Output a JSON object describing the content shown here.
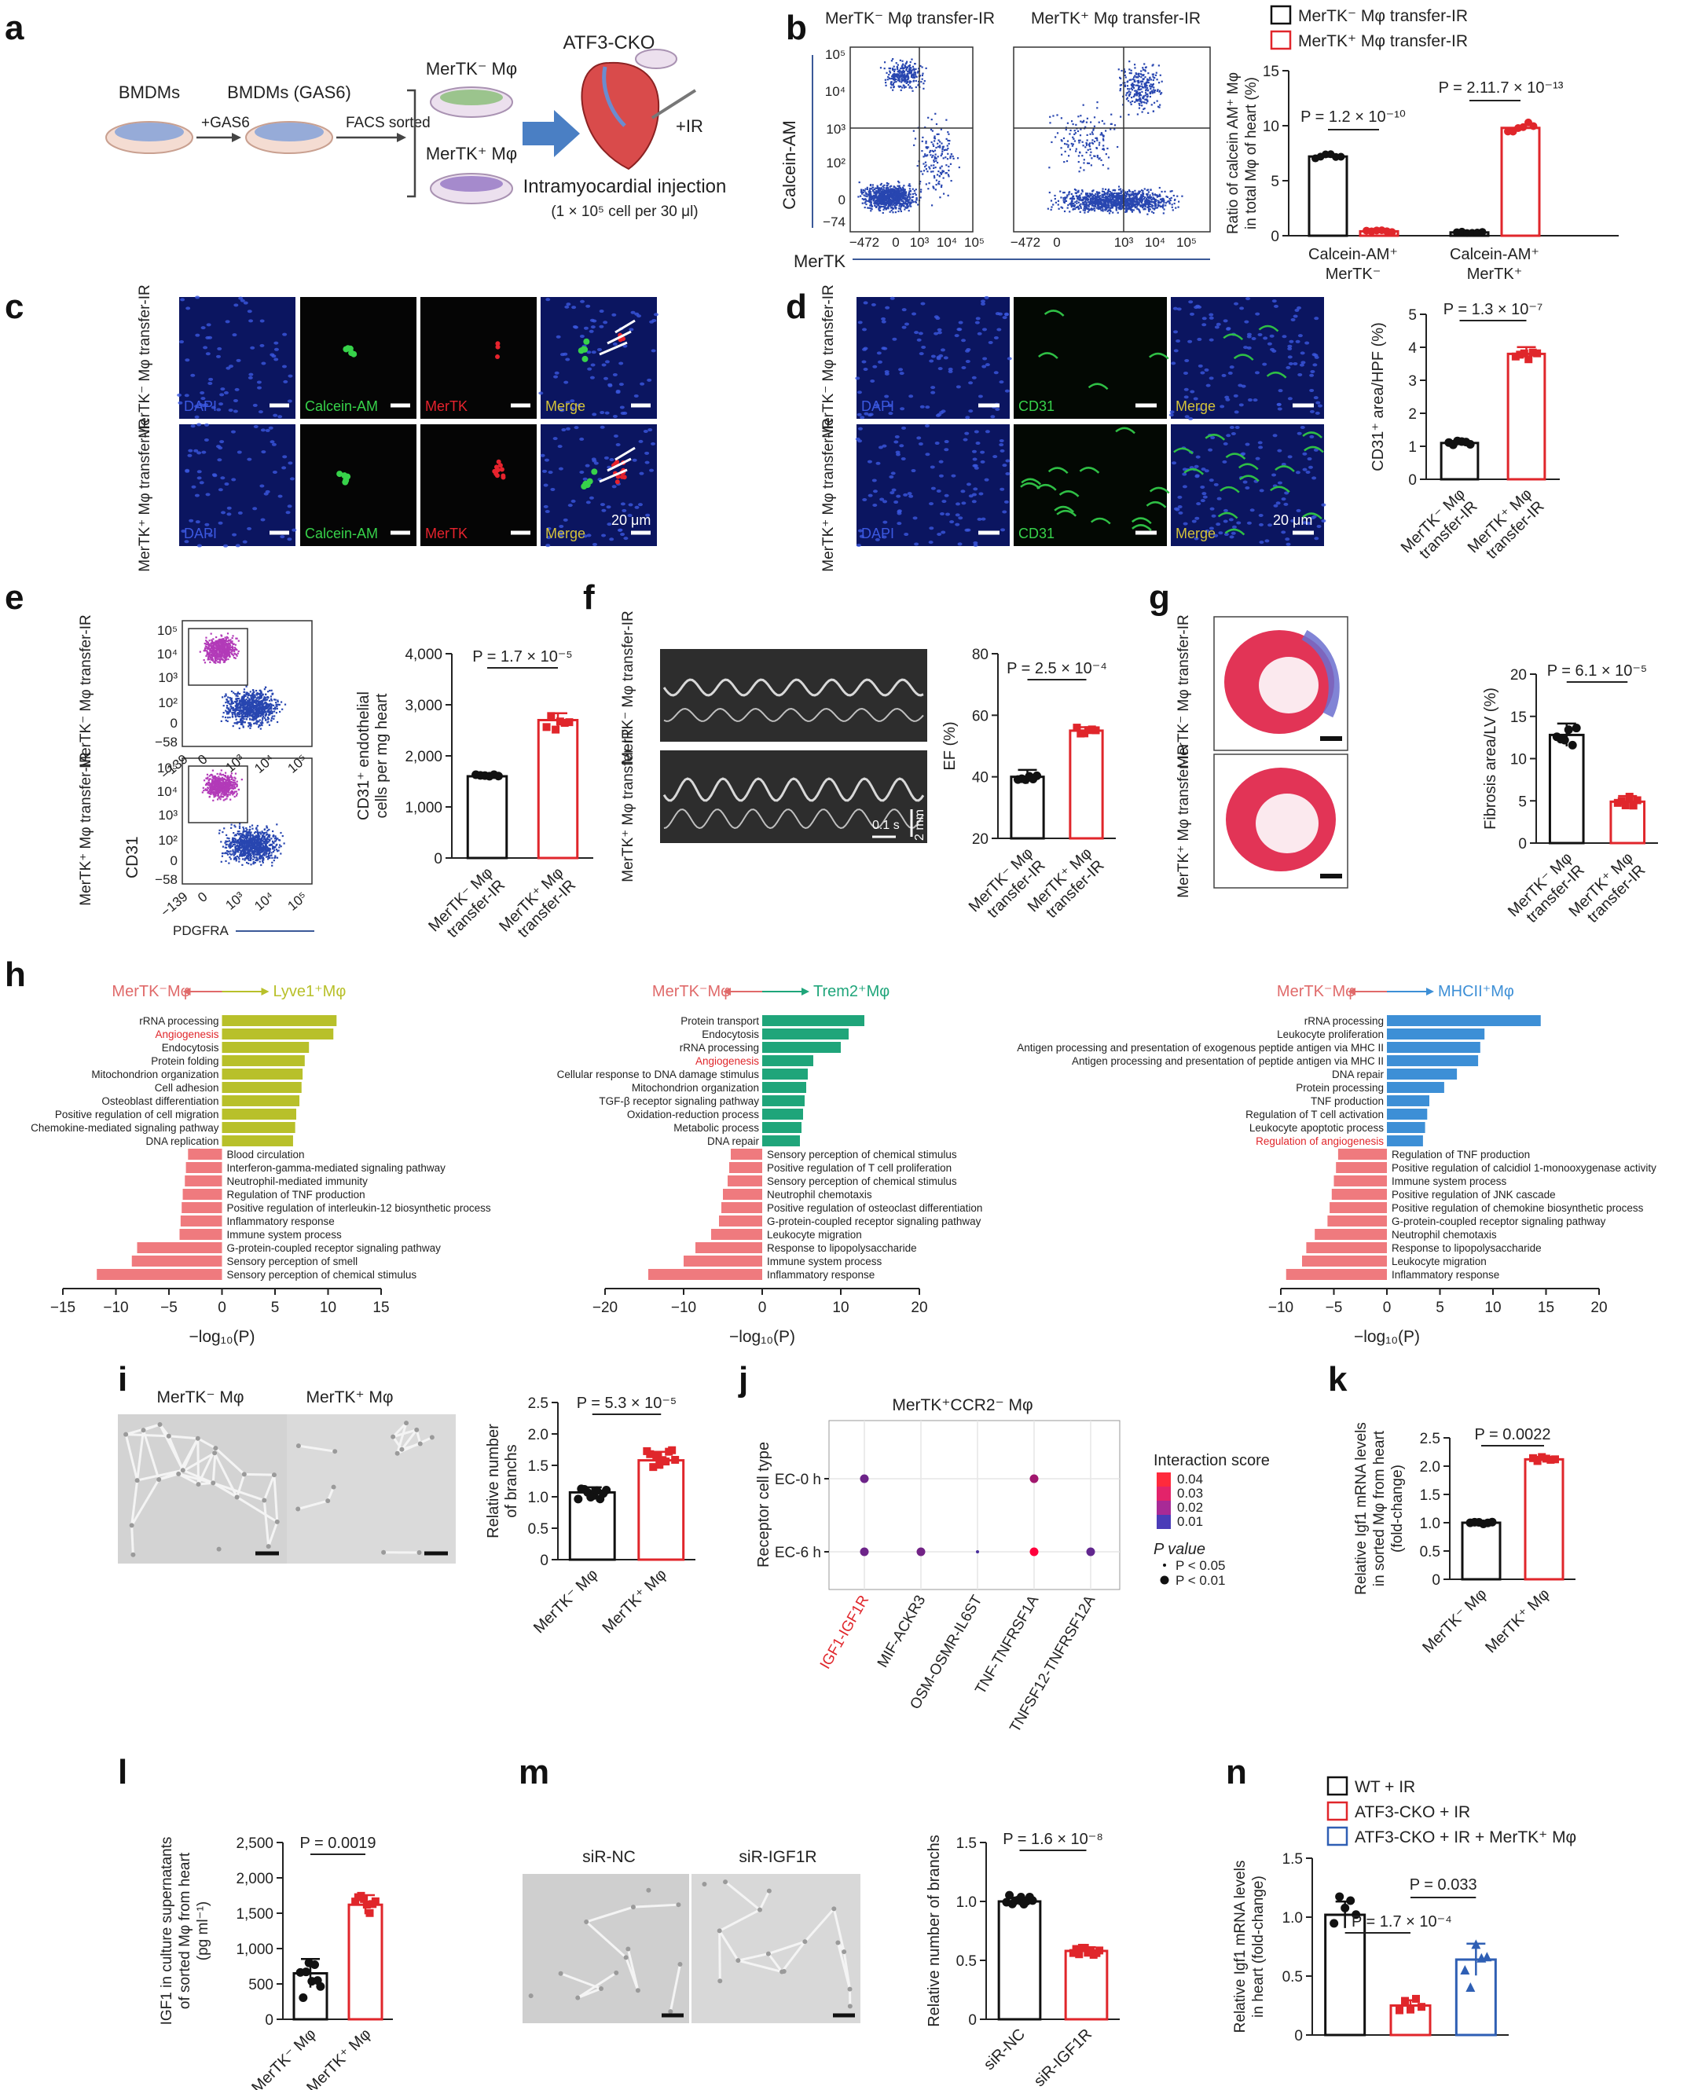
{
  "panel_labels": [
    "a",
    "b",
    "c",
    "d",
    "e",
    "f",
    "g",
    "h",
    "i",
    "j",
    "k",
    "l",
    "m",
    "n"
  ],
  "panel_a": {
    "bmdms": "BMDMs",
    "bmdms_gas6": "BMDMs (GAS6)",
    "gas6": "+GAS6",
    "facs": "FACS sorted",
    "merneg": "MerTK⁻ Mφ",
    "merpos": "MerTK⁺ Mφ",
    "cko": "ATF3-CKO",
    "ir": "+IR",
    "injection": "Intramyocardial injection",
    "dose": "(1 × 10⁵ cell per 30 μl)"
  },
  "panel_b": {
    "flow_titles": [
      "MerTK⁻ Mφ transfer-IR",
      "MerTK⁺ Mφ transfer-IR"
    ],
    "ylabel": "Calcein-AM",
    "xlabel": "MerTK",
    "yticks": [
      "10⁵",
      "10⁴",
      "10³",
      "10²",
      "0",
      "−74"
    ],
    "xticks": [
      "−472",
      "0",
      "10³",
      "10⁴",
      "10⁵"
    ],
    "legend": [
      "MerTK⁻ Mφ transfer-IR",
      "MerTK⁺ Mφ transfer-IR"
    ],
    "bar_ylabel": "Ratio of calcein AM⁺ Mφ in total Mφ of heart (%)",
    "p1": "P = 1.2 × 10⁻¹⁰",
    "p2": "P = 2.11.7 × 10⁻¹³",
    "group1": "Calcein-AM⁺ MerTK⁻ Mφ",
    "group2": "Calcein-AM⁺ MerTK⁺ Mφ"
  },
  "panel_c": {
    "row_labels": [
      "MerTK⁻ Mφ transfer-IR",
      "MerTK⁺ Mφ transfer-IR"
    ],
    "channels": [
      "DAPI",
      "Calcein-AM",
      "MerTK",
      "Merge"
    ],
    "scale": "20 μm"
  },
  "panel_d": {
    "row_labels": [
      "MerTK⁻ Mφ transfer-IR",
      "MerTK⁺ Mφ transfer-IR"
    ],
    "channels": [
      "DAPI",
      "CD31",
      "Merge"
    ],
    "scale": "20 μm",
    "ylabel": "CD31⁺ area/HPF (%)",
    "p": "P = 1.3 × 10⁻⁷",
    "groups": [
      "MerTK⁻ Mφ transfer-IR",
      "MerTK⁺ Mφ transfer-IR"
    ]
  },
  "panel_e": {
    "row_labels": [
      "MerTK⁻ Mφ transfer-IR",
      "MerTK⁺ Mφ transfer-IR"
    ],
    "ylabel": "CD31",
    "xlabel": "PDGFRA",
    "yticks": [
      "10⁵",
      "10⁴",
      "10³",
      "10²",
      "0",
      "−58"
    ],
    "xticks": [
      "−139",
      "0",
      "10³",
      "10⁴",
      "10⁵"
    ],
    "bar_ylabel": "CD31⁺ endothelial cells per mg heart",
    "p": "P = 1.7 × 10⁻⁵",
    "groups": [
      "MerTK⁻ Mφ transfer-IR",
      "MerTK⁺ Mφ transfer-IR"
    ]
  },
  "panel_f": {
    "row_labels": [
      "MerTK⁻ Mφ transfer-IR",
      "MerTK⁺ Mφ transfer-IR"
    ],
    "scale_t": "0.1 s",
    "scale_d": "2 mm",
    "ylabel": "EF (%)",
    "p": "P = 2.5 × 10⁻⁴",
    "groups": [
      "MerTK⁻ Mφ transfer-IR",
      "MerTK⁺ Mφ transfer-IR"
    ]
  },
  "panel_g": {
    "row_labels": [
      "MerTK⁻ Mφ transfer-IR",
      "MerTK⁺ Mφ transfer-IR"
    ],
    "ylabel": "Fibrosis area/LV (%)",
    "p": "P = 6.1 × 10⁻⁵",
    "groups": [
      "MerTK⁻ Mφ transfer-IR",
      "MerTK⁺ Mφ transfer-IR"
    ]
  },
  "panel_h": {
    "xlabel": "−log₁₀(P)",
    "neg_label": "MerTK⁻Mφ",
    "plots": [
      {
        "pos_label": "Lyve1⁺Mφ",
        "pos_color": "#b8c02a",
        "xmin": -15,
        "xmax": 15,
        "xticks": [
          -15,
          -10,
          -5,
          0,
          5,
          10,
          15
        ],
        "up": [
          [
            "rRNA processing",
            10.8
          ],
          [
            "Angiogenesis",
            10.5
          ],
          [
            "Endocytosis",
            8.2
          ],
          [
            "Protein folding",
            7.8
          ],
          [
            "Mitochondrion organization",
            7.6
          ],
          [
            "Cell adhesion",
            7.5
          ],
          [
            "Osteoblast differentiation",
            7.3
          ],
          [
            "Positive regulation of cell migration",
            7.0
          ],
          [
            "Chemokine-mediated signaling pathway",
            6.9
          ],
          [
            "DNA replication",
            6.7
          ]
        ],
        "down": [
          [
            "Blood circulation",
            -3.2
          ],
          [
            "Interferon-gamma-mediated signaling pathway",
            -3.4
          ],
          [
            "Neutrophil-mediated immunity",
            -3.5
          ],
          [
            "Regulation of TNF production",
            -3.7
          ],
          [
            "Positive regulation of interleukin-12 biosynthetic process",
            -3.8
          ],
          [
            "Inflammatory response",
            -3.9
          ],
          [
            "Immune system process",
            -4.0
          ],
          [
            "G-protein-coupled receptor signaling pathway",
            -8.0
          ],
          [
            "Sensory perception of smell",
            -8.5
          ],
          [
            "Sensory perception of chemical stimulus",
            -11.8
          ]
        ],
        "highlight": "Angiogenesis"
      },
      {
        "pos_label": "Trem2⁺Mφ",
        "pos_color": "#1fa57a",
        "xmin": -20,
        "xmax": 20,
        "xticks": [
          -20,
          -10,
          0,
          10,
          20
        ],
        "up": [
          [
            "Protein transport",
            13.0
          ],
          [
            "Endocytosis",
            11.0
          ],
          [
            "rRNA processing",
            10.0
          ],
          [
            "Angiogenesis",
            6.5
          ],
          [
            "Cellular response to DNA damage stimulus",
            5.8
          ],
          [
            "Mitochondrion organization",
            5.6
          ],
          [
            "TGF-β receptor signaling pathway",
            5.4
          ],
          [
            "Oxidation-reduction process",
            5.2
          ],
          [
            "Metabolic process",
            5.0
          ],
          [
            "DNA repair",
            4.8
          ]
        ],
        "down": [
          [
            "Sensory perception of chemical stimulus",
            -4.0
          ],
          [
            "Positive regulation of T cell proliferation",
            -4.2
          ],
          [
            "Sensory perception of chemical stimulus",
            -4.4
          ],
          [
            "Neutrophil chemotaxis",
            -5.0
          ],
          [
            "Positive regulation of osteoclast differentiation",
            -5.2
          ],
          [
            "G-protein-coupled receptor signaling pathway",
            -5.5
          ],
          [
            "Leukocyte migration",
            -6.5
          ],
          [
            "Response to lipopolysaccharide",
            -8.5
          ],
          [
            "Immune system process",
            -10.0
          ],
          [
            "Inflammatory response",
            -14.5
          ]
        ],
        "highlight": "Angiogenesis"
      },
      {
        "pos_label": "MHCII⁺Mφ",
        "pos_color": "#3d8fd6",
        "xmin": -10,
        "xmax": 20,
        "xticks": [
          -10,
          -5,
          0,
          5,
          10,
          15,
          20
        ],
        "up": [
          [
            "rRNA processing",
            14.5
          ],
          [
            "Leukocyte proliferation",
            9.2
          ],
          [
            "Antigen processing and presentation of exogenous peptide antigen via MHC II",
            8.8
          ],
          [
            "Antigen processing and presentation of peptide antigen via MHC II",
            8.6
          ],
          [
            "DNA repair",
            6.6
          ],
          [
            "Protein processing",
            5.4
          ],
          [
            "TNF production",
            4.0
          ],
          [
            "Regulation of T cell activation",
            3.8
          ],
          [
            "Leukocyte apoptotic process",
            3.6
          ],
          [
            "Regulation of angiogenesis",
            3.4
          ]
        ],
        "down": [
          [
            "Regulation of TNF production",
            -4.6
          ],
          [
            "Positive regulation of calcidiol 1-monooxygenase activity",
            -4.8
          ],
          [
            "Immune system process",
            -5.0
          ],
          [
            "Positive regulation of JNK cascade",
            -5.2
          ],
          [
            "Positive regulation of chemokine biosynthetic process",
            -5.4
          ],
          [
            "G-protein-coupled receptor signaling pathway",
            -5.6
          ],
          [
            "Neutrophil chemotaxis",
            -6.8
          ],
          [
            "Response to lipopolysaccharide",
            -7.6
          ],
          [
            "Leukocyte migration",
            -8.0
          ],
          [
            "Inflammatory response",
            -9.5
          ]
        ],
        "highlight": "Regulation of angiogenesis"
      }
    ]
  },
  "panel_i": {
    "images": [
      "MerTK⁻ Mφ",
      "MerTK⁺ Mφ"
    ],
    "ylabel": "Relative number of branchs",
    "p": "P = 5.3 × 10⁻⁵",
    "groups": [
      "MerTK⁻ Mφ",
      "MerTK⁺ Mφ"
    ]
  },
  "panel_j": {
    "title": "MerTK⁺CCR2⁻ Mφ",
    "ylabel": "Receptor cell type",
    "rows": [
      "EC-0 h",
      "EC-6 h"
    ],
    "cols": [
      "IGF1-IGF1R",
      "MIF-ACKR3",
      "OSM-OSMR-IL6ST",
      "TNF-TNFRSF1A",
      "TNFSF12-TNFRSF12A"
    ],
    "legend_title": "Interaction score",
    "legend_ticks": [
      "0.04",
      "0.03",
      "0.02",
      "0.01"
    ],
    "pvalue_title": "P value",
    "pvalue_items": [
      "P < 0.05",
      "P < 0.01"
    ]
  },
  "panel_k": {
    "ylabel": "Relative Igf1 mRNA levels in sorted Mφ from heart (fold-change)",
    "p": "P = 0.0022",
    "groups": [
      "MerTK⁻ Mφ",
      "MerTK⁺ Mφ"
    ]
  },
  "panel_l": {
    "ylabel": "IGF1 in culture supernatants of sorted Mφ from heart (pg ml⁻¹)",
    "p": "P = 0.0019",
    "groups": [
      "MerTK⁻ Mφ",
      "MerTK⁺ Mφ"
    ]
  },
  "panel_m": {
    "images": [
      "siR-NC",
      "siR-IGF1R"
    ],
    "ylabel": "Relative number of branchs",
    "p": "P = 1.6 × 10⁻⁸",
    "groups": [
      "siR-NC",
      "siR-IGF1R"
    ]
  },
  "panel_n": {
    "legend": [
      "WT + IR",
      "ATF3-CKO + IR",
      "ATF3-CKO + IR + MerTK⁺ Mφ"
    ],
    "ylabel": "Relative Igf1 mRNA levels in heart (fold-change)",
    "p1": "P = 1.7 × 10⁻⁴",
    "p2": "P = 0.033"
  },
  "chart_data": [
    {
      "id": "b",
      "type": "bar",
      "categories": [
        "Calcein-AM⁺ MerTK⁻ Mφ",
        "Calcein-AM⁺ MerTK⁺ Mφ"
      ],
      "series": [
        {
          "name": "MerTK⁻ Mφ transfer-IR",
          "values": [
            7.2,
            0.3
          ]
        },
        {
          "name": "MerTK⁺ Mφ transfer-IR",
          "values": [
            0.4,
            9.8
          ]
        }
      ],
      "ylim": [
        0,
        15
      ],
      "yticks": [
        0,
        5,
        10,
        15
      ]
    },
    {
      "id": "d",
      "type": "bar",
      "categories": [
        "MerTK⁻ Mφ transfer-IR",
        "MerTK⁺ Mφ transfer-IR"
      ],
      "values": [
        1.1,
        3.8
      ],
      "ylim": [
        0,
        5
      ],
      "yticks": [
        0,
        1,
        2,
        3,
        4,
        5
      ]
    },
    {
      "id": "e",
      "type": "bar",
      "categories": [
        "MerTK⁻ Mφ transfer-IR",
        "MerTK⁺ Mφ transfer-IR"
      ],
      "values": [
        1600,
        2700
      ],
      "ylim": [
        0,
        4000
      ],
      "yticks": [
        0,
        1000,
        2000,
        3000,
        4000
      ],
      "yticklabels": [
        "0",
        "1,000",
        "2,000",
        "3,000",
        "4,000"
      ]
    },
    {
      "id": "f",
      "type": "bar",
      "categories": [
        "MerTK⁻ Mφ transfer-IR",
        "MerTK⁺ Mφ transfer-IR"
      ],
      "values": [
        40,
        55
      ],
      "ylim": [
        20,
        80
      ],
      "yticks": [
        20,
        40,
        60,
        80
      ]
    },
    {
      "id": "g",
      "type": "bar",
      "categories": [
        "MerTK⁻ Mφ transfer-IR",
        "MerTK⁺ Mφ transfer-IR"
      ],
      "values": [
        12.8,
        4.9
      ],
      "ylim": [
        0,
        20
      ],
      "yticks": [
        0,
        5,
        10,
        15,
        20
      ]
    },
    {
      "id": "i",
      "type": "bar",
      "categories": [
        "MerTK⁻ Mφ",
        "MerTK⁺ Mφ"
      ],
      "values": [
        1.07,
        1.58
      ],
      "ylim": [
        0,
        2.5
      ],
      "yticks": [
        0,
        0.5,
        1.0,
        1.5,
        2.0,
        2.5
      ],
      "yticklabels": [
        "0",
        "0.5",
        "1.0",
        "1.5",
        "2.0",
        "2.5"
      ]
    },
    {
      "id": "k",
      "type": "bar",
      "categories": [
        "MerTK⁻ Mφ",
        "MerTK⁺ Mφ"
      ],
      "values": [
        1.0,
        2.12
      ],
      "ylim": [
        0,
        2.5
      ],
      "yticks": [
        0,
        0.5,
        1.0,
        1.5,
        2.0,
        2.5
      ],
      "yticklabels": [
        "0",
        "0.5",
        "1.0",
        "1.5",
        "2.0",
        "2.5"
      ]
    },
    {
      "id": "l",
      "type": "bar",
      "categories": [
        "MerTK⁻ Mφ",
        "MerTK⁺ Mφ"
      ],
      "values": [
        650,
        1620
      ],
      "ylim": [
        0,
        2500
      ],
      "yticks": [
        0,
        500,
        1000,
        1500,
        2000,
        2500
      ],
      "yticklabels": [
        "0",
        "500",
        "1,000",
        "1,500",
        "2,000",
        "2,500"
      ]
    },
    {
      "id": "m",
      "type": "bar",
      "categories": [
        "siR-NC",
        "siR-IGF1R"
      ],
      "values": [
        1.0,
        0.58
      ],
      "ylim": [
        0,
        1.5
      ],
      "yticks": [
        0,
        0.5,
        1.0,
        1.5
      ],
      "yticklabels": [
        "0",
        "0.5",
        "1.0",
        "1.5"
      ]
    },
    {
      "id": "n",
      "type": "bar",
      "categories": [
        "WT + IR",
        "ATF3-CKO + IR",
        "ATF3-CKO + IR + MerTK⁺ Mφ"
      ],
      "values": [
        1.02,
        0.25,
        0.64
      ],
      "ylim": [
        0,
        1.5
      ],
      "yticks": [
        0,
        0.5,
        1.0,
        1.5
      ],
      "yticklabels": [
        "0",
        "0.5",
        "1.0",
        "1.5"
      ]
    },
    {
      "id": "j",
      "type": "scatter",
      "x": [
        "IGF1-IGF1R",
        "IGF1-IGF1R",
        "MIF-ACKR3",
        "OSM-OSMR-IL6ST",
        "TNF-TNFRSF1A",
        "TNF-TNFRSF1A",
        "TNFSF12-TNFRSF12A"
      ],
      "y": [
        "EC-0 h",
        "EC-6 h",
        "EC-6 h",
        "EC-6 h",
        "EC-0 h",
        "EC-6 h",
        "EC-6 h"
      ],
      "score": [
        0.012,
        0.012,
        0.013,
        0.005,
        0.022,
        0.04,
        0.01
      ]
    }
  ]
}
